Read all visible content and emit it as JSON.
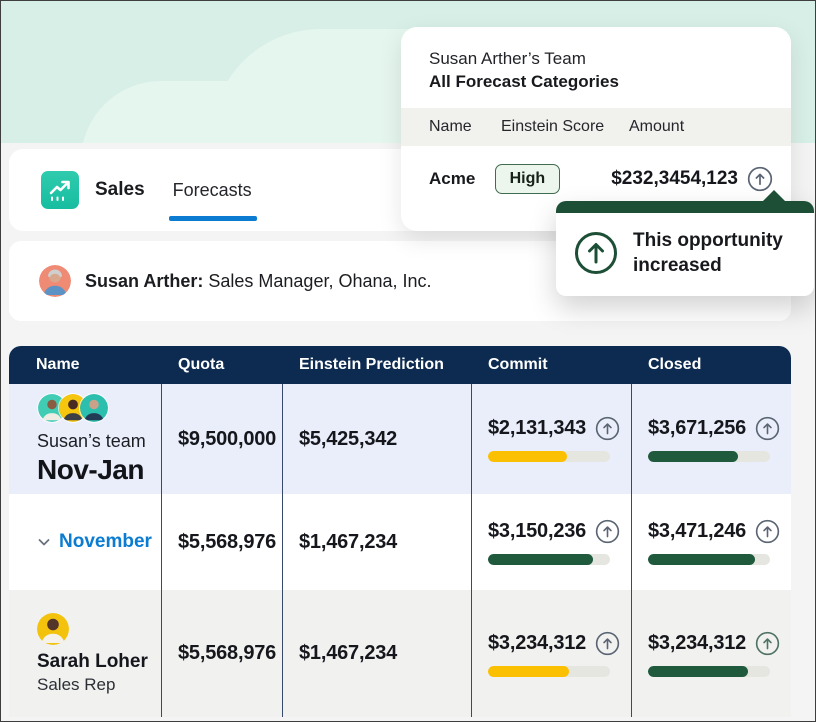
{
  "nav": {
    "app_label": "Sales",
    "tab_label": "Forecasts"
  },
  "user_banner": {
    "name": "Susan Arther:",
    "role": "Sales Manager, Ohana, Inc."
  },
  "overlay_card": {
    "title": "Susan Arther’s Team",
    "subtitle": "All Forecast Categories",
    "columns": [
      "Name",
      "Einstein Score",
      "Amount"
    ],
    "row": {
      "name": "Acme",
      "score": "High",
      "amount": "$232,3454,123"
    }
  },
  "tooltip": {
    "text": "This opportunity increased"
  },
  "forecast_table": {
    "columns": [
      "Name",
      "Quota",
      "Einstein Prediction",
      "Commit",
      "Closed"
    ],
    "rows": [
      {
        "label_top": "Susan’s team",
        "label_main": "Nov-Jan",
        "quota": "$9,500,000",
        "prediction": "$5,425,342",
        "commit": {
          "amount": "$2,131,343",
          "pct": 65,
          "color": "yellow"
        },
        "closed": {
          "amount": "$3,671,256",
          "pct": 74,
          "color": "green"
        }
      },
      {
        "label_main": "November",
        "quota": "$5,568,976",
        "prediction": "$1,467,234",
        "commit": {
          "amount": "$3,150,236",
          "pct": 86,
          "color": "green"
        },
        "closed": {
          "amount": "$3,471,246",
          "pct": 88,
          "color": "green"
        }
      },
      {
        "label_top": "Sarah Loher",
        "label_sub": "Sales Rep",
        "quota": "$5,568,976",
        "prediction": "$1,467,234",
        "commit": {
          "amount": "$3,234,312",
          "pct": 66,
          "color": "yellow"
        },
        "closed": {
          "amount": "$3,234,312",
          "pct": 82,
          "color": "green"
        }
      }
    ]
  },
  "colors": {
    "yellow": "#fcc003",
    "green": "#1f5a3d",
    "accent_blue": "#0b7cd1",
    "header_navy": "#0d2b50",
    "mint": "#d8efe7",
    "teal_app": "#26c6a9",
    "badge_border": "#3f6b4f",
    "badge_bg": "#edf6ec",
    "tooltip_green": "#1d4f37"
  }
}
